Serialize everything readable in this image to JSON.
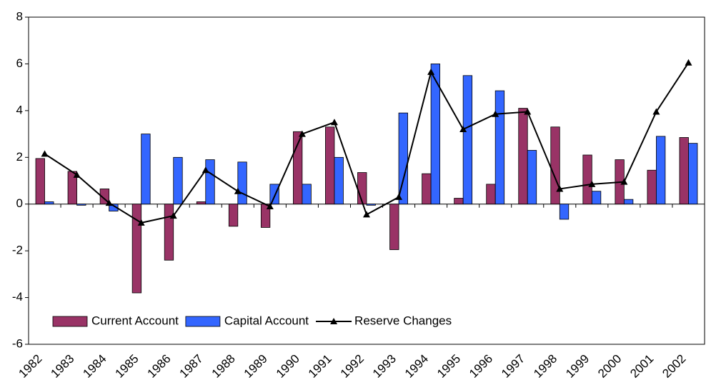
{
  "chart_data": {
    "type": "bar",
    "categories": [
      "1982",
      "1983",
      "1984",
      "1985",
      "1986",
      "1987",
      "1988",
      "1989",
      "1990",
      "1991",
      "1992",
      "1993",
      "1994",
      "1995",
      "1996",
      "1997",
      "1998",
      "1999",
      "2000",
      "2001",
      "2002"
    ],
    "series": [
      {
        "name": "Current Account",
        "type": "bar",
        "color": "#993366",
        "values": [
          1.95,
          1.4,
          0.65,
          -3.8,
          -2.4,
          0.1,
          -0.95,
          -1.0,
          3.1,
          3.3,
          1.35,
          -1.95,
          1.3,
          0.25,
          0.85,
          4.1,
          3.3,
          2.1,
          1.9,
          1.45,
          2.85
        ]
      },
      {
        "name": "Capital Account",
        "type": "bar",
        "color": "#3366ff",
        "values": [
          0.1,
          -0.05,
          -0.3,
          3.0,
          2.0,
          1.9,
          1.8,
          0.85,
          0.85,
          2.0,
          -0.05,
          3.9,
          6.0,
          5.5,
          4.85,
          2.3,
          -0.65,
          0.55,
          0.2,
          2.9,
          2.6
        ]
      },
      {
        "name": "Reserve Changes",
        "type": "line",
        "color": "#000000",
        "values": [
          2.15,
          1.25,
          0.05,
          -0.8,
          -0.5,
          1.45,
          0.55,
          -0.1,
          3.0,
          3.5,
          -0.45,
          0.3,
          5.65,
          3.2,
          3.85,
          3.95,
          0.65,
          0.85,
          0.95,
          3.95,
          6.05
        ]
      }
    ],
    "ylim": [
      -6,
      8
    ],
    "yticks": [
      -6,
      -4,
      -2,
      0,
      2,
      4,
      6,
      8
    ],
    "grid": false,
    "legend": "lower left"
  }
}
